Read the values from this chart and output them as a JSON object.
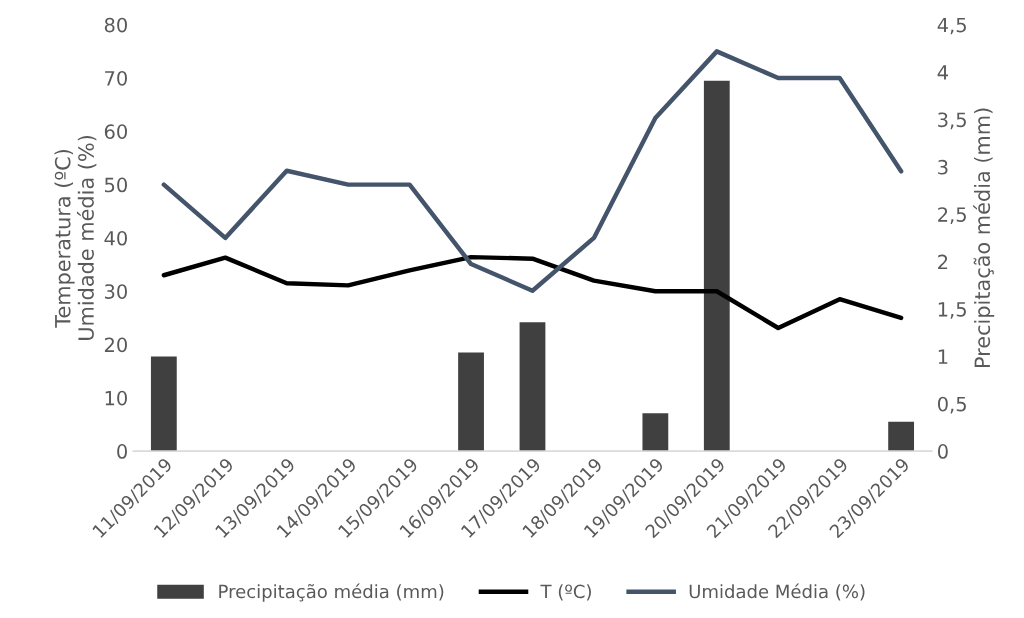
{
  "chart_data": {
    "type": "line",
    "categories": [
      "11/09/2019",
      "12/09/2019",
      "13/09/2019",
      "14/09/2019",
      "15/09/2019",
      "16/09/2019",
      "17/09/2019",
      "18/09/2019",
      "19/09/2019",
      "20/09/2019",
      "21/09/2019",
      "22/09/2019",
      "23/09/2019"
    ],
    "ylabel": "Temperatura (ºC)\nUmidade média (%)",
    "y2label": "Precipitação média (mm)",
    "ylim": [
      0,
      80
    ],
    "yticks": [
      0,
      10,
      20,
      30,
      40,
      50,
      60,
      70,
      80
    ],
    "y2lim": [
      0,
      4.5
    ],
    "y2ticks": [
      0,
      {
        "value": 0.5,
        "label": "0,5"
      },
      1,
      {
        "value": 1.5,
        "label": "1,5"
      },
      2,
      {
        "value": 2.5,
        "label": "2,5"
      },
      3,
      {
        "value": 3.5,
        "label": "3,5"
      },
      4,
      {
        "value": 4.5,
        "label": "4,5"
      }
    ],
    "grid": false,
    "legend": "bottom",
    "series": [
      {
        "name": "Precipitação média (mm)",
        "type": "bar",
        "axis": "y2",
        "color": "#404040",
        "values": [
          1.0,
          null,
          null,
          null,
          null,
          1.04,
          1.36,
          null,
          0.4,
          3.91,
          null,
          null,
          0.31
        ]
      },
      {
        "name": "T (ºC)",
        "color": "#000000",
        "values": [
          33,
          36.3,
          31.5,
          31.1,
          33.9,
          36.4,
          36.1,
          32,
          30,
          30,
          23.1,
          28.5,
          25
        ]
      },
      {
        "name": "Umidade Média (%)",
        "color": "#44546a",
        "values": [
          50,
          40,
          52.6,
          50,
          50,
          35.1,
          30.1,
          40,
          62.5,
          75,
          70,
          70,
          52.5
        ]
      }
    ]
  }
}
